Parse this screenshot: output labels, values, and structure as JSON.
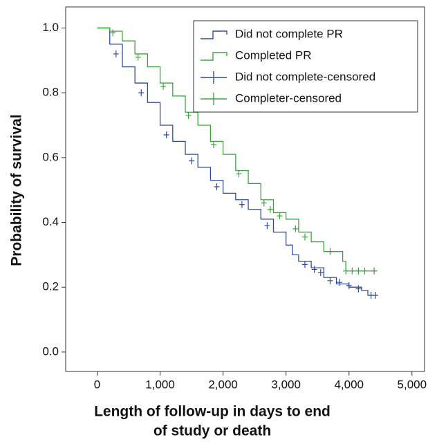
{
  "chart_data": {
    "type": "km",
    "xlabel": [
      "Length of follow-up in days to end",
      "of study or death"
    ],
    "ylabel": "Probability of survival",
    "xlim": [
      -500,
      5200
    ],
    "ylim": [
      -0.06,
      1.065
    ],
    "xticks": [
      0,
      {
        "value": 1000,
        "label": "1,000"
      },
      {
        "value": 2000,
        "label": "2,000"
      },
      {
        "value": 3000,
        "label": "3,000"
      },
      {
        "value": 4000,
        "label": "4,000"
      },
      {
        "value": 5000,
        "label": "5,000"
      }
    ],
    "yticks": [
      {
        "value": 0,
        "label": "0.0"
      },
      {
        "value": 0.2,
        "label": "0.2"
      },
      {
        "value": 0.4,
        "label": "0.4"
      },
      {
        "value": 0.6,
        "label": "0.6"
      },
      {
        "value": 0.8,
        "label": "0.8"
      },
      {
        "value": 1,
        "label": "1.0"
      }
    ],
    "legend": "upper right",
    "series": [
      {
        "name": "Did not complete PR",
        "kind": "step",
        "color": "#2f4b9c",
        "x": [
          0,
          200,
          400,
          600,
          800,
          1000,
          1200,
          1400,
          1600,
          1800,
          2000,
          2200,
          2400,
          2600,
          2800,
          3000,
          3100,
          3200,
          3400,
          3600,
          3800,
          4000,
          4200,
          4300,
          4450
        ],
        "values": [
          1.0,
          0.95,
          0.88,
          0.83,
          0.77,
          0.7,
          0.65,
          0.61,
          0.57,
          0.53,
          0.49,
          0.47,
          0.44,
          0.41,
          0.37,
          0.33,
          0.3,
          0.28,
          0.26,
          0.23,
          0.21,
          0.2,
          0.19,
          0.175,
          0.175
        ]
      },
      {
        "name": "Completed PR",
        "kind": "step",
        "color": "#3aa63a",
        "x": [
          0,
          100,
          200,
          400,
          600,
          800,
          1000,
          1200,
          1400,
          1600,
          1800,
          2000,
          2200,
          2400,
          2600,
          2800,
          3000,
          3200,
          3400,
          3600,
          3800,
          3900,
          3950,
          4450
        ],
        "values": [
          1.0,
          1.0,
          0.99,
          0.96,
          0.92,
          0.88,
          0.83,
          0.79,
          0.74,
          0.7,
          0.65,
          0.61,
          0.56,
          0.52,
          0.47,
          0.43,
          0.41,
          0.37,
          0.34,
          0.31,
          0.31,
          0.28,
          0.25,
          0.25
        ]
      },
      {
        "name": "Did not complete-censored",
        "kind": "censor",
        "color": "#2f4b9c",
        "x": [
          300,
          700,
          1100,
          1500,
          1900,
          2300,
          2700,
          3300,
          3450,
          3550,
          3700,
          3850,
          4000,
          4150,
          4350,
          4420
        ],
        "values": [
          0.92,
          0.8,
          0.67,
          0.59,
          0.51,
          0.455,
          0.39,
          0.27,
          0.255,
          0.245,
          0.22,
          0.215,
          0.205,
          0.195,
          0.175,
          0.175
        ]
      },
      {
        "name": "Completer-censored",
        "kind": "censor",
        "color": "#3aa63a",
        "x": [
          250,
          650,
          1050,
          1450,
          1850,
          2250,
          2650,
          2750,
          2900,
          3150,
          3300,
          3700,
          3950,
          4050,
          4150,
          4250,
          4400
        ],
        "values": [
          0.985,
          0.91,
          0.82,
          0.73,
          0.64,
          0.55,
          0.46,
          0.44,
          0.42,
          0.38,
          0.355,
          0.31,
          0.25,
          0.25,
          0.25,
          0.25,
          0.25
        ]
      }
    ]
  }
}
